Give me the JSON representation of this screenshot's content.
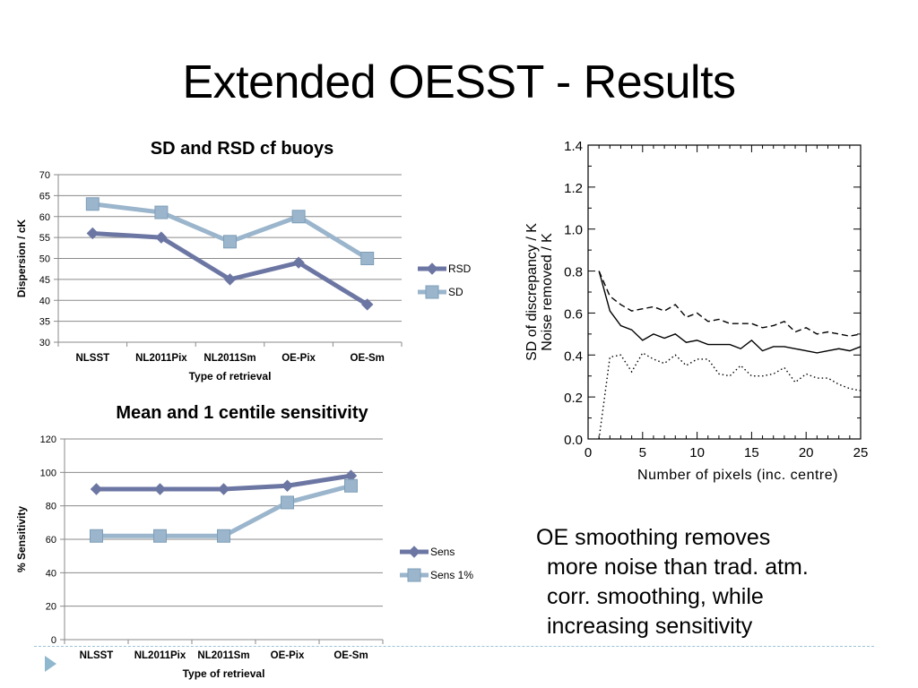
{
  "slide": {
    "title": "Extended OESST - Results"
  },
  "caption": {
    "lines": [
      "OE smoothing removes",
      "more noise than trad. atm.",
      "corr. smoothing, while",
      "increasing sensitivity"
    ]
  },
  "colors": {
    "series_dark": "#6c76a3",
    "series_light": "#9ab5cc",
    "grid": "#8a8a8a",
    "footer_accent": "#8fb8cf"
  },
  "icons": {
    "footer": "play-triangle-icon"
  },
  "chart_data": [
    {
      "id": "sd",
      "type": "line",
      "title": "SD and RSD cf buoys",
      "xlabel": "Type of retrieval",
      "ylabel": "Dispersion / cK",
      "categories": [
        "NLSST",
        "NL2011Pix",
        "NL2011Sm",
        "OE-Pix",
        "OE-Sm"
      ],
      "ylim": [
        30,
        70
      ],
      "yticks": [
        30,
        35,
        40,
        45,
        50,
        55,
        60,
        65,
        70
      ],
      "grid": true,
      "legend": "right",
      "series": [
        {
          "name": "RSD",
          "values": [
            56,
            55,
            45,
            49,
            39
          ],
          "color": "#6c76a3",
          "marker": "diamond"
        },
        {
          "name": "SD",
          "values": [
            63,
            61,
            54,
            60,
            50
          ],
          "color": "#9ab5cc",
          "marker": "square"
        }
      ]
    },
    {
      "id": "sens",
      "type": "line",
      "title": "Mean and 1 centile sensitivity",
      "xlabel": "Type of retrieval",
      "ylabel": "% Sensitivity",
      "categories": [
        "NLSST",
        "NL2011Pix",
        "NL2011Sm",
        "OE-Pix",
        "OE-Sm"
      ],
      "ylim": [
        0,
        120
      ],
      "yticks": [
        0,
        20,
        40,
        60,
        80,
        100,
        120
      ],
      "grid": true,
      "legend": "right",
      "series": [
        {
          "name": "Sens",
          "values": [
            90,
            90,
            90,
            92,
            98
          ],
          "color": "#6c76a3",
          "marker": "diamond"
        },
        {
          "name": "Sens 1%",
          "values": [
            62,
            62,
            62,
            82,
            92
          ],
          "color": "#9ab5cc",
          "marker": "square"
        }
      ]
    },
    {
      "id": "noise",
      "type": "line",
      "title": "",
      "xlabel": "Number of pixels (inc. centre)",
      "ylabel": "SD of discrepancy / K",
      "ylabel2": "Noise removed / K",
      "xlim": [
        0,
        25
      ],
      "xticks": [
        0,
        5,
        10,
        15,
        20,
        25
      ],
      "ylim": [
        0,
        1.4
      ],
      "yticks": [
        "0.0",
        "0.2",
        "0.4",
        "0.6",
        "0.8",
        "1.0",
        "1.2",
        "1.4"
      ],
      "grid": false,
      "series": [
        {
          "style": "dashed",
          "x": [
            1,
            2,
            3,
            4,
            5,
            6,
            7,
            8,
            9,
            10,
            11,
            12,
            13,
            14,
            15,
            16,
            17,
            18,
            19,
            20,
            21,
            22,
            23,
            24,
            25
          ],
          "y": [
            0.8,
            0.68,
            0.64,
            0.61,
            0.62,
            0.63,
            0.61,
            0.64,
            0.58,
            0.6,
            0.56,
            0.57,
            0.55,
            0.55,
            0.55,
            0.53,
            0.54,
            0.56,
            0.51,
            0.53,
            0.5,
            0.51,
            0.5,
            0.49,
            0.5
          ]
        },
        {
          "style": "solid",
          "x": [
            1,
            2,
            3,
            4,
            5,
            6,
            7,
            8,
            9,
            10,
            11,
            12,
            13,
            14,
            15,
            16,
            17,
            18,
            19,
            20,
            21,
            22,
            23,
            24,
            25
          ],
          "y": [
            0.8,
            0.61,
            0.54,
            0.52,
            0.47,
            0.5,
            0.48,
            0.5,
            0.46,
            0.47,
            0.45,
            0.45,
            0.45,
            0.43,
            0.47,
            0.42,
            0.44,
            0.44,
            0.43,
            0.42,
            0.41,
            0.42,
            0.43,
            0.42,
            0.44
          ]
        },
        {
          "style": "dotted",
          "x": [
            1,
            2,
            3,
            4,
            5,
            6,
            7,
            8,
            9,
            10,
            11,
            12,
            13,
            14,
            15,
            16,
            17,
            18,
            19,
            20,
            21,
            22,
            23,
            24,
            25
          ],
          "y": [
            0.0,
            0.39,
            0.4,
            0.32,
            0.41,
            0.38,
            0.36,
            0.4,
            0.35,
            0.38,
            0.38,
            0.31,
            0.3,
            0.35,
            0.3,
            0.3,
            0.31,
            0.34,
            0.27,
            0.31,
            0.29,
            0.29,
            0.26,
            0.24,
            0.23
          ]
        }
      ]
    }
  ]
}
